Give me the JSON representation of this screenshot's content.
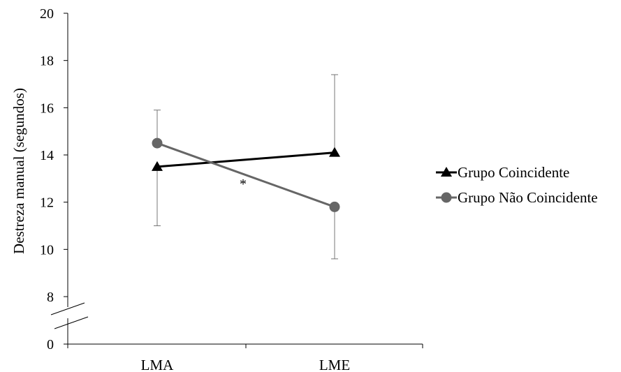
{
  "chart_data": {
    "type": "line",
    "ylabel": "Destreza manual (segundos)",
    "xlabel": "",
    "categories": [
      "LMA",
      "LME"
    ],
    "y_ticks": [
      0,
      8,
      10,
      12,
      14,
      16,
      18,
      20
    ],
    "axis_break": "between 0 and 8",
    "ylim": [
      8,
      20
    ],
    "grid": false,
    "legend_position": "right",
    "annotation": "*",
    "series": [
      {
        "name": "Grupo Coincidente",
        "marker": "triangle",
        "color": "#000000",
        "values": [
          13.5,
          14.1
        ],
        "error_upper": [
          null,
          17.4
        ],
        "error_lower": [
          11.0,
          null
        ]
      },
      {
        "name": "Grupo Não Coincidente",
        "marker": "circle",
        "color": "#666666",
        "values": [
          14.5,
          11.8
        ],
        "error_upper": [
          15.9,
          null
        ],
        "error_lower": [
          null,
          9.6
        ]
      }
    ]
  }
}
